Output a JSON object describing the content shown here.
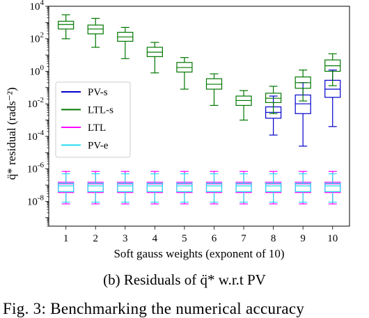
{
  "chart_data": {
    "type": "box",
    "xlabel": "Soft gauss weights (exponent of 10)",
    "ylabel": "q̈* residual (rads⁻²)",
    "categories": [
      "1",
      "2",
      "3",
      "4",
      "5",
      "6",
      "7",
      "8",
      "9",
      "10"
    ],
    "yscale": "log",
    "ylim": [
      3e-10,
      10000
    ],
    "yticks": [
      {
        "exp": "4",
        "value": 10000
      },
      {
        "exp": "2",
        "value": 100
      },
      {
        "exp": "0",
        "value": 1
      },
      {
        "exp": "-2",
        "value": 0.01
      },
      {
        "exp": "-4",
        "value": 0.0001
      },
      {
        "exp": "-6",
        "value": 1e-06
      },
      {
        "exp": "-8",
        "value": 1e-08
      }
    ],
    "tick_base": "10",
    "legend": {
      "position": "center-left",
      "entries": [
        "PV-s",
        "LTL-s",
        "LTL",
        "PV-e"
      ]
    },
    "series": [
      {
        "name": "PV-s",
        "color": "#0000cc",
        "positions": [
          8,
          9,
          10
        ],
        "boxes": [
          {
            "whislo": 0.00012,
            "q1": 0.0013,
            "med": 0.003,
            "q3": 0.0065,
            "whishi": 0.03
          },
          {
            "whislo": 2.5e-05,
            "q1": 0.0025,
            "med": 0.01,
            "q3": 0.035,
            "whishi": 0.2
          },
          {
            "whislo": 0.0004,
            "q1": 0.025,
            "med": 0.08,
            "q3": 0.28,
            "whishi": 1.2
          }
        ]
      },
      {
        "name": "LTL-s",
        "color": "#007700",
        "positions": [
          1,
          2,
          3,
          4,
          5,
          6,
          7,
          8,
          9,
          10
        ],
        "boxes": [
          {
            "whislo": 100,
            "q1": 400,
            "med": 750,
            "q3": 1200,
            "whishi": 3000
          },
          {
            "whislo": 30,
            "q1": 200,
            "med": 400,
            "q3": 700,
            "whishi": 1800
          },
          {
            "whislo": 6,
            "q1": 70,
            "med": 130,
            "q3": 250,
            "whishi": 500
          },
          {
            "whislo": 0.8,
            "q1": 8,
            "med": 15,
            "q3": 30,
            "whishi": 60
          },
          {
            "whislo": 0.08,
            "q1": 0.9,
            "med": 1.7,
            "q3": 3.5,
            "whishi": 7
          },
          {
            "whislo": 0.008,
            "q1": 0.08,
            "med": 0.16,
            "q3": 0.35,
            "whishi": 0.7
          },
          {
            "whislo": 0.001,
            "q1": 0.008,
            "med": 0.016,
            "q3": 0.03,
            "whishi": 0.065
          },
          {
            "whislo": 0.0025,
            "q1": 0.012,
            "med": 0.022,
            "q3": 0.045,
            "whishi": 0.12
          },
          {
            "whislo": 0.015,
            "q1": 0.09,
            "med": 0.2,
            "q3": 0.45,
            "whishi": 1.2
          },
          {
            "whislo": 0.13,
            "q1": 1,
            "med": 2.2,
            "q3": 5,
            "whishi": 12
          }
        ]
      },
      {
        "name": "LTL",
        "color": "#ff00ff",
        "positions": [
          1,
          2,
          3,
          4,
          5,
          6,
          7,
          8,
          9,
          10
        ],
        "boxes": [
          {
            "whislo": 7e-09,
            "q1": 3.5e-08,
            "med": 1.2e-07,
            "q3": 1.5e-07,
            "whishi": 7e-07
          },
          {
            "whislo": 7e-09,
            "q1": 3.5e-08,
            "med": 1.2e-07,
            "q3": 1.5e-07,
            "whishi": 7e-07
          },
          {
            "whislo": 7e-09,
            "q1": 3.5e-08,
            "med": 1.2e-07,
            "q3": 1.5e-07,
            "whishi": 7e-07
          },
          {
            "whislo": 7e-09,
            "q1": 3.5e-08,
            "med": 1.2e-07,
            "q3": 1.5e-07,
            "whishi": 7e-07
          },
          {
            "whislo": 7e-09,
            "q1": 3.5e-08,
            "med": 1.2e-07,
            "q3": 1.5e-07,
            "whishi": 7e-07
          },
          {
            "whislo": 7e-09,
            "q1": 3.5e-08,
            "med": 1.2e-07,
            "q3": 1.5e-07,
            "whishi": 7e-07
          },
          {
            "whislo": 7e-09,
            "q1": 3.5e-08,
            "med": 1.2e-07,
            "q3": 1.5e-07,
            "whishi": 7e-07
          },
          {
            "whislo": 7e-09,
            "q1": 3.5e-08,
            "med": 1.2e-07,
            "q3": 1.5e-07,
            "whishi": 7e-07
          },
          {
            "whislo": 7e-09,
            "q1": 3.5e-08,
            "med": 1.2e-07,
            "q3": 1.5e-07,
            "whishi": 7e-07
          },
          {
            "whislo": 7e-09,
            "q1": 3.5e-08,
            "med": 1.2e-07,
            "q3": 1.5e-07,
            "whishi": 7e-07
          }
        ]
      },
      {
        "name": "PV-e",
        "color": "#22ddee",
        "positions": [
          1,
          2,
          3,
          4,
          5,
          6,
          7,
          8,
          9,
          10
        ],
        "boxes": [
          {
            "whislo": 9e-09,
            "q1": 4e-08,
            "med": 9e-08,
            "q3": 1.3e-07,
            "whishi": 5e-07
          },
          {
            "whislo": 9e-09,
            "q1": 4e-08,
            "med": 9e-08,
            "q3": 1.3e-07,
            "whishi": 5e-07
          },
          {
            "whislo": 9e-09,
            "q1": 4e-08,
            "med": 9e-08,
            "q3": 1.3e-07,
            "whishi": 5e-07
          },
          {
            "whislo": 9e-09,
            "q1": 4e-08,
            "med": 9e-08,
            "q3": 1.3e-07,
            "whishi": 5e-07
          },
          {
            "whislo": 9e-09,
            "q1": 4e-08,
            "med": 9e-08,
            "q3": 1.3e-07,
            "whishi": 5e-07
          },
          {
            "whislo": 9e-09,
            "q1": 4e-08,
            "med": 9e-08,
            "q3": 1.3e-07,
            "whishi": 5e-07
          },
          {
            "whislo": 9e-09,
            "q1": 4e-08,
            "med": 9e-08,
            "q3": 1.3e-07,
            "whishi": 5e-07
          },
          {
            "whislo": 9e-09,
            "q1": 4e-08,
            "med": 9e-08,
            "q3": 1.3e-07,
            "whishi": 5e-07
          },
          {
            "whislo": 9e-09,
            "q1": 4e-08,
            "med": 9e-08,
            "q3": 1.3e-07,
            "whishi": 5e-07
          },
          {
            "whislo": 9e-09,
            "q1": 4e-08,
            "med": 9e-08,
            "q3": 1.3e-07,
            "whishi": 5e-07
          }
        ]
      }
    ]
  },
  "caption": "(b) Residuals of q̈* w.r.t PV",
  "fig_text": "Fig. 3: Benchmarking the numerical accuracy"
}
